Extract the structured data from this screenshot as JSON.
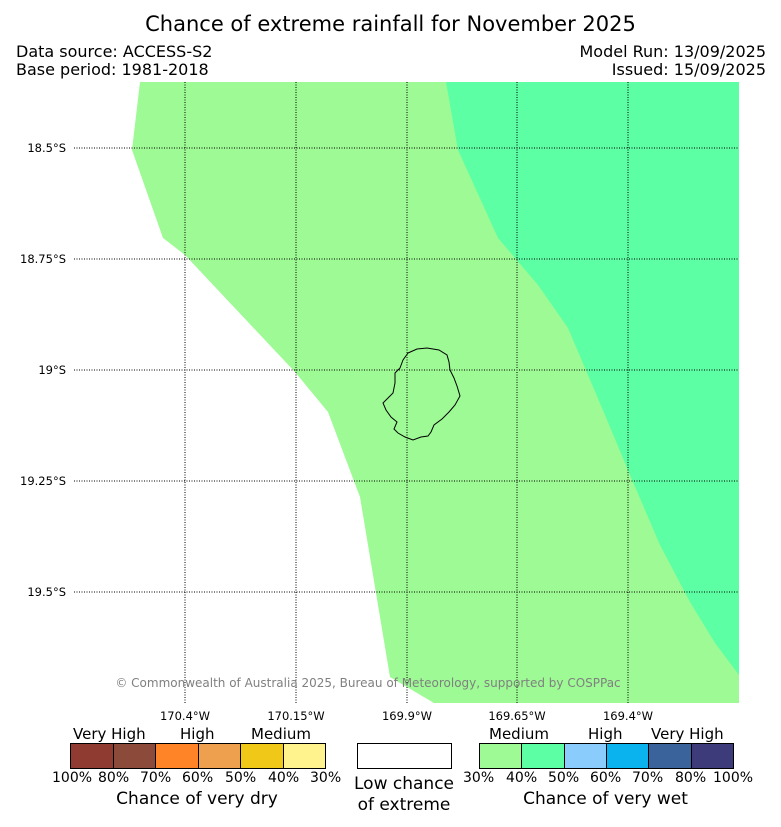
{
  "title": "Chance of extreme rainfall for November 2025",
  "header": {
    "data_source": "Data source: ACCESS-S2",
    "base_period": "Base period: 1981-2018",
    "model_run": "Model Run: 13/09/2025",
    "issued": "Issued: 15/09/2025"
  },
  "map": {
    "lat_labels": [
      "18.5°S",
      "18.75°S",
      "19°S",
      "19.25°S",
      "19.5°S"
    ],
    "lon_labels": [
      "170.4°W",
      "170.15°W",
      "169.9°W",
      "169.65°W",
      "169.4°W"
    ],
    "copyright": "© Commonwealth of Australia 2025, Bureau of Meteorology, supported by COSPPac",
    "regions": [
      {
        "category": "Medium (30%-40%) chance of very wet",
        "color": "#9dfa94"
      },
      {
        "category": "Medium (40%-50%) chance of very wet",
        "color": "#5cffa3"
      }
    ],
    "island_outline_color": "#000000"
  },
  "legend": {
    "dry": {
      "labels": [
        "Very High",
        "High",
        "Medium"
      ],
      "percentages": [
        "100%",
        "80%",
        "70%",
        "60%",
        "50%",
        "40%",
        "30%"
      ],
      "colors": [
        "#8f3b32",
        "#8b4a3a",
        "#ff8428",
        "#eea04f",
        "#f0c818",
        "#fef38c"
      ],
      "title": "Chance of very dry"
    },
    "neutral": {
      "color": "#ffffff",
      "title_line1": "Low chance",
      "title_line2": "of extreme"
    },
    "wet": {
      "labels": [
        "Medium",
        "High",
        "Very High"
      ],
      "percentages": [
        "30%",
        "40%",
        "50%",
        "60%",
        "70%",
        "80%",
        "100%"
      ],
      "colors": [
        "#9dfa94",
        "#5cffa3",
        "#8acdfc",
        "#0bb3ee",
        "#3b639b",
        "#3e3b7a"
      ],
      "title": "Chance of very wet"
    }
  }
}
